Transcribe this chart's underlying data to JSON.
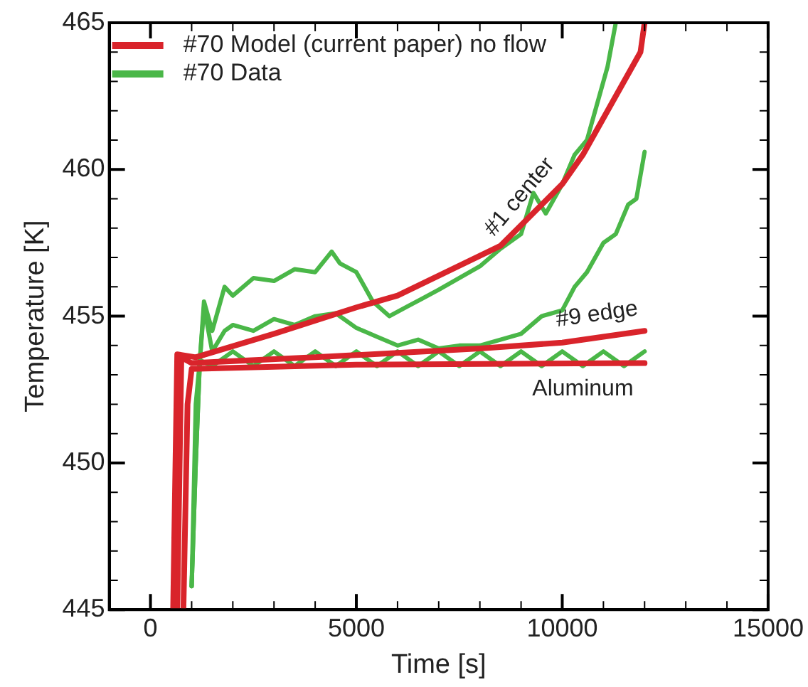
{
  "chart_data": {
    "type": "line",
    "xlabel": "Time [s]",
    "ylabel": "Temperature [K]",
    "xlim": [
      -1000,
      15000
    ],
    "ylim": [
      445,
      465
    ],
    "xticks": [
      0,
      {
        "value": 1000,
        "label": null
      },
      {
        "value": 2000,
        "label": null
      },
      {
        "value": 3000,
        "label": null
      },
      {
        "value": 4000,
        "label": null
      },
      5000,
      {
        "value": 6000,
        "label": null
      },
      {
        "value": 7000,
        "label": null
      },
      {
        "value": 8000,
        "label": null
      },
      {
        "value": 9000,
        "label": null
      },
      10000,
      {
        "value": 11000,
        "label": null
      },
      {
        "value": 12000,
        "label": null
      },
      {
        "value": 13000,
        "label": null
      },
      {
        "value": 14000,
        "label": null
      },
      15000
    ],
    "yticks": [
      445,
      {
        "value": 446,
        "label": null
      },
      {
        "value": 447,
        "label": null
      },
      {
        "value": 448,
        "label": null
      },
      {
        "value": 449,
        "label": null
      },
      450,
      {
        "value": 451,
        "label": null
      },
      {
        "value": 452,
        "label": null
      },
      {
        "value": 453,
        "label": null
      },
      {
        "value": 454,
        "label": null
      },
      455,
      {
        "value": 456,
        "label": null
      },
      {
        "value": 457,
        "label": null
      },
      {
        "value": 458,
        "label": null
      },
      {
        "value": 459,
        "label": null
      },
      460,
      {
        "value": 461,
        "label": null
      },
      {
        "value": 462,
        "label": null
      },
      {
        "value": 463,
        "label": null
      },
      {
        "value": 464,
        "label": null
      },
      465
    ],
    "grid": false,
    "legend": "top left",
    "marker": "none",
    "line_style": "solid",
    "series": [
      {
        "name": "#70 Model (current paper) no flow",
        "color": "#d9242b",
        "x": [
          550,
          650,
          1100,
          3000,
          5000,
          6000,
          8500,
          10000,
          10500,
          11500,
          11900,
          12000
        ],
        "values": [
          445,
          453.7,
          453.6,
          454.4,
          455.3,
          455.7,
          457.4,
          459.5,
          460.5,
          463,
          464,
          465
        ]
      },
      {
        "color": "#d9242b",
        "x": [
          650,
          750,
          1000,
          4000,
          8000,
          10000,
          12000
        ],
        "values": [
          445,
          453.6,
          453.4,
          453.6,
          453.9,
          454.1,
          454.5
        ]
      },
      {
        "color": "#d9242b",
        "x": [
          800,
          900,
          1000,
          5000,
          12000
        ],
        "values": [
          445,
          452,
          453.2,
          453.35,
          453.4
        ]
      },
      {
        "name": "#70 Data",
        "color": "#4ab748",
        "x": [
          1000,
          1100,
          1200,
          1300,
          1500,
          1800,
          2000,
          2500,
          3000,
          3500,
          4000,
          4400,
          4600,
          5000,
          5400,
          5800,
          6200,
          6600,
          7000,
          7500,
          8000,
          8500,
          9000,
          9300,
          9600,
          10000,
          10300,
          10600,
          10900,
          11100,
          11300
        ],
        "values": [
          445.8,
          450,
          453.5,
          455.5,
          454.5,
          456,
          455.7,
          456.3,
          456.2,
          456.6,
          456.5,
          457.2,
          456.8,
          456.5,
          455.5,
          455,
          455.3,
          455.6,
          455.9,
          456.3,
          456.7,
          457.3,
          457.8,
          459.2,
          458.5,
          459.5,
          460.5,
          461,
          462.5,
          463.5,
          465
        ]
      },
      {
        "color": "#4ab748",
        "x": [
          1000,
          1100,
          1200,
          1300,
          1500,
          1800,
          2000,
          2500,
          3000,
          3500,
          4000,
          4500,
          5000,
          5500,
          6000,
          6500,
          7000,
          7500,
          8000,
          8500,
          9000,
          9500,
          10000,
          10300,
          10600,
          11000,
          11300,
          11600,
          11800,
          12000
        ],
        "values": [
          445.8,
          450,
          453.5,
          455.3,
          453.8,
          454.5,
          454.7,
          454.5,
          454.9,
          454.7,
          455,
          455.1,
          454.6,
          454.3,
          454,
          454.2,
          453.9,
          454,
          454,
          454.2,
          454.4,
          455,
          455.2,
          456,
          456.5,
          457.5,
          457.8,
          458.8,
          459,
          460.6
        ]
      },
      {
        "color": "#4ab748",
        "x": [
          1000,
          1100,
          1200,
          1500,
          2000,
          2500,
          3000,
          3500,
          4000,
          4500,
          5000,
          5500,
          6000,
          6500,
          7000,
          7500,
          8000,
          8500,
          9000,
          9500,
          10000,
          10500,
          11000,
          11500,
          12000
        ],
        "values": [
          445.8,
          452,
          453.5,
          453.3,
          453.8,
          453.3,
          453.8,
          453.3,
          453.8,
          453.3,
          453.8,
          453.3,
          453.8,
          453.3,
          453.8,
          453.3,
          453.8,
          453.3,
          453.8,
          453.3,
          453.8,
          453.3,
          453.8,
          453.3,
          453.8
        ]
      }
    ],
    "annotations": [
      {
        "text": "#1 center",
        "x": 9700,
        "y": 459.08
      },
      {
        "text": "#9 edge",
        "x": 11400,
        "y": 454.38
      },
      {
        "text": "Aluminum",
        "x": 10500,
        "y": 453.3
      }
    ]
  }
}
